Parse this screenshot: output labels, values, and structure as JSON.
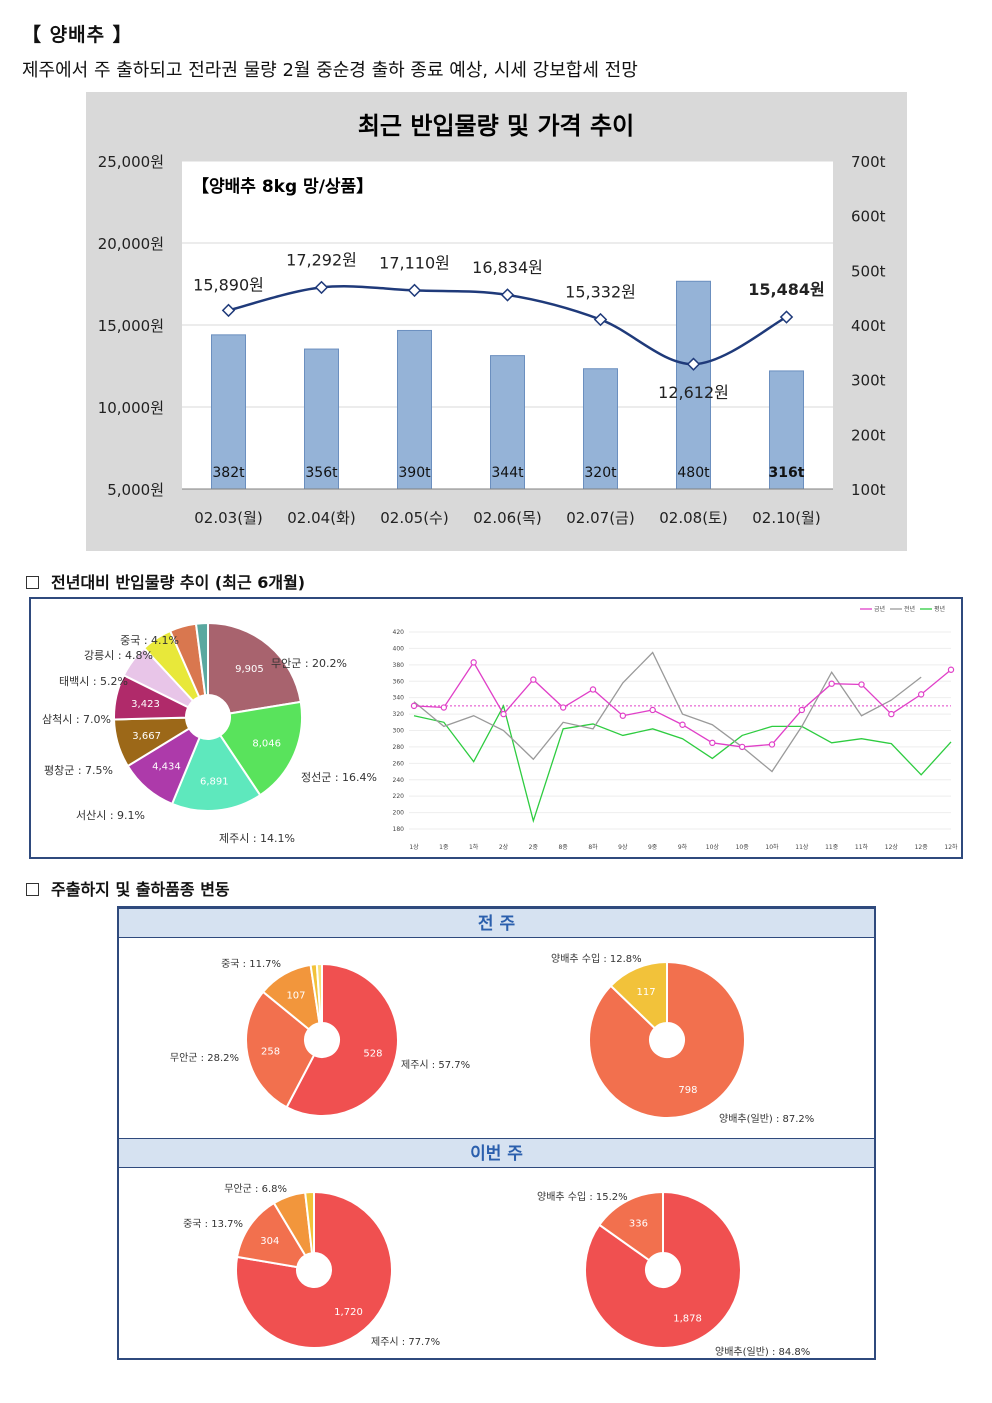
{
  "header": {
    "title": "【 양배추 】",
    "subtitle": "제주에서 주 출하되고 전라권 물량 2월 중순경 출하 종료 예상, 시세 강보합세 전망"
  },
  "sections": {
    "trend_heading": "전년대비 반입물량 추이 (최근 6개월)",
    "shipping_heading": "주출하지 및 출하품종 변동",
    "prev_week": "전 주",
    "this_week": "이번 주"
  },
  "colors": {
    "bar": "#95b3d7",
    "line": "#1f3a7a",
    "panel_border": "#2f4a7d",
    "band": "#d6e2f1",
    "cur": "#e040c8",
    "prev": "#9a9a9a",
    "avg": "#2ecc40"
  },
  "chart_data": [
    {
      "type": "bar",
      "title": "최근 반입물량 및 가격 추이",
      "inner_label": "【양배추 8kg 망/상품】",
      "categories": [
        "02.03(월)",
        "02.04(화)",
        "02.05(수)",
        "02.06(목)",
        "02.07(금)",
        "02.08(토)",
        "02.10(월)"
      ],
      "series": [
        {
          "axis": "right",
          "values": [
            382,
            356,
            390,
            344,
            320,
            480,
            316
          ],
          "labels": [
            "382t",
            "356t",
            "390t",
            "344t",
            "320t",
            "480t",
            "316t"
          ]
        },
        {
          "axis": "left",
          "type": "line",
          "values": [
            15890,
            17292,
            17110,
            16834,
            15332,
            12612,
            15484
          ],
          "labels": [
            "15,890원",
            "17,292원",
            "17,110원",
            "16,834원",
            "15,332원",
            "12,612원",
            "15,484원"
          ]
        }
      ],
      "left_axis": {
        "ticks": [
          "5,000원",
          "10,000원",
          "15,000원",
          "20,000원",
          "25,000원"
        ],
        "ylim": [
          5000,
          25000
        ]
      },
      "right_axis": {
        "ticks": [
          "100t",
          "200t",
          "300t",
          "400t",
          "500t",
          "600t",
          "700t"
        ],
        "ylim": [
          100,
          700
        ]
      }
    },
    {
      "type": "pie",
      "slices": [
        {
          "label": "무안군 : 20.2%",
          "value": 9905,
          "value_label": "9,905",
          "color": "#a8636e"
        },
        {
          "label": "정선군 : 16.4%",
          "value": 8046,
          "value_label": "8,046",
          "color": "#59e35c"
        },
        {
          "label": "제주시 : 14.1%",
          "value": 6891,
          "value_label": "6,891",
          "color": "#5ee8bd"
        },
        {
          "label": "서산시 : 9.1%",
          "value": 4434,
          "value_label": "4,434",
          "color": "#ad3aaa"
        },
        {
          "label": "평창군 : 7.5%",
          "value": 3667,
          "value_label": "3,667",
          "color": "#9c6818"
        },
        {
          "label": "삼척시 : 7.0%",
          "value": 3423,
          "value_label": "3,423",
          "color": "#b02a6a"
        },
        {
          "label": "태백시 : 5.2%",
          "value": 2550,
          "value_label": "",
          "color": "#e8c5e8"
        },
        {
          "label": "강릉시 : 4.8%",
          "value": 2350,
          "value_label": "",
          "color": "#e8e83a"
        },
        {
          "label": "중국 : 4.1%",
          "value": 2010,
          "value_label": "",
          "color": "#d9774f"
        },
        {
          "label": "",
          "value": 900,
          "value_label": "",
          "color": "#5aa8a0"
        }
      ]
    },
    {
      "type": "line",
      "legend": [
        "금년",
        "전년",
        "평년"
      ],
      "categories": [
        "1상",
        "1중",
        "1하",
        "2상",
        "2중",
        "8중",
        "8하",
        "9상",
        "9중",
        "9하",
        "10상",
        "10중",
        "10하",
        "11상",
        "11중",
        "11하",
        "12상",
        "12중",
        "12하"
      ],
      "y_ticks": [
        "180",
        "200",
        "220",
        "240",
        "260",
        "280",
        "300",
        "320",
        "340",
        "360",
        "380",
        "400",
        "420"
      ],
      "ylim": [
        180,
        420
      ],
      "average_line": 330,
      "series": [
        {
          "name": "금년",
          "values": [
            330,
            328,
            383,
            320,
            362,
            328,
            350,
            318,
            325,
            307,
            285,
            280,
            283,
            325,
            357,
            356,
            320,
            344,
            374
          ]
        },
        {
          "name": "전년",
          "values": [
            335,
            305,
            318,
            300,
            265,
            310,
            302,
            358,
            395,
            320,
            307,
            280,
            250,
            305,
            371,
            318,
            337,
            365,
            null
          ]
        },
        {
          "name": "평년",
          "values": [
            318,
            310,
            262,
            330,
            190,
            302,
            308,
            294,
            302,
            290,
            266,
            294,
            305,
            305,
            285,
            290,
            284,
            246,
            286
          ]
        }
      ]
    },
    {
      "type": "pie",
      "group": "전 주",
      "donut": true,
      "slices": [
        {
          "label": "제주시 : 57.7%",
          "value": 528,
          "value_label": "528",
          "color": "#f05050"
        },
        {
          "label": "무안군 : 28.2%",
          "value": 258,
          "value_label": "258",
          "color": "#f2704e"
        },
        {
          "label": "중국 : 11.7%",
          "value": 107,
          "value_label": "107",
          "color": "#f2963c"
        },
        {
          "label": "",
          "value": 12,
          "value_label": "",
          "color": "#f2c23a"
        },
        {
          "label": "",
          "value": 10,
          "value_label": "",
          "color": "#f7e07a"
        }
      ]
    },
    {
      "type": "pie",
      "group": "전 주",
      "donut": true,
      "slices": [
        {
          "label": "양배추(일반) : 87.2%",
          "value": 798,
          "value_label": "798",
          "color": "#f2704e"
        },
        {
          "label": "양배추 수입 : 12.8%",
          "value": 117,
          "value_label": "117",
          "color": "#f2c23a"
        }
      ]
    },
    {
      "type": "pie",
      "group": "이번 주",
      "donut": true,
      "slices": [
        {
          "label": "제주시 : 77.7%",
          "value": 1720,
          "value_label": "1,720",
          "color": "#f05050"
        },
        {
          "label": "중국 : 13.7%",
          "value": 304,
          "value_label": "304",
          "color": "#f2704e"
        },
        {
          "label": "무안군 : 6.8%",
          "value": 150,
          "value_label": "",
          "color": "#f2963c"
        },
        {
          "label": "",
          "value": 40,
          "value_label": "",
          "color": "#f2c23a"
        }
      ]
    },
    {
      "type": "pie",
      "group": "이번 주",
      "donut": true,
      "slices": [
        {
          "label": "양배추(일반) : 84.8%",
          "value": 1878,
          "value_label": "1,878",
          "color": "#f05050"
        },
        {
          "label": "양배추 수입 : 15.2%",
          "value": 336,
          "value_label": "336",
          "color": "#f2704e"
        }
      ]
    }
  ]
}
